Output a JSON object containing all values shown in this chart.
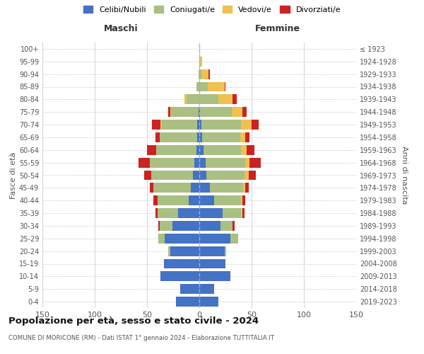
{
  "age_groups": [
    "0-4",
    "5-9",
    "10-14",
    "15-19",
    "20-24",
    "25-29",
    "30-34",
    "35-39",
    "40-44",
    "45-49",
    "50-54",
    "55-59",
    "60-64",
    "65-69",
    "70-74",
    "75-79",
    "80-84",
    "85-89",
    "90-94",
    "95-99",
    "100+"
  ],
  "birth_years": [
    "2019-2023",
    "2014-2018",
    "2009-2013",
    "2004-2008",
    "1999-2003",
    "1994-1998",
    "1989-1993",
    "1984-1988",
    "1979-1983",
    "1974-1978",
    "1969-1973",
    "1964-1968",
    "1959-1963",
    "1954-1958",
    "1949-1953",
    "1944-1948",
    "1939-1943",
    "1934-1938",
    "1929-1933",
    "1924-1928",
    "≤ 1923"
  ],
  "males": {
    "celibi": [
      22,
      18,
      37,
      34,
      28,
      33,
      26,
      20,
      10,
      8,
      6,
      5,
      3,
      2,
      2,
      1,
      0,
      0,
      0,
      0,
      0
    ],
    "coniugati": [
      0,
      0,
      0,
      0,
      2,
      6,
      12,
      20,
      30,
      36,
      40,
      42,
      38,
      36,
      34,
      26,
      12,
      3,
      1,
      0,
      0
    ],
    "vedovi": [
      0,
      0,
      0,
      0,
      0,
      0,
      0,
      0,
      0,
      0,
      0,
      0,
      0,
      0,
      1,
      1,
      2,
      0,
      0,
      0,
      0
    ],
    "divorziati": [
      0,
      0,
      0,
      0,
      0,
      0,
      1,
      2,
      4,
      3,
      7,
      11,
      9,
      4,
      8,
      2,
      0,
      0,
      0,
      0,
      0
    ]
  },
  "females": {
    "nubili": [
      18,
      14,
      30,
      25,
      24,
      30,
      20,
      22,
      14,
      10,
      7,
      6,
      4,
      3,
      2,
      1,
      0,
      0,
      0,
      0,
      0
    ],
    "coniugate": [
      0,
      0,
      0,
      0,
      2,
      7,
      12,
      18,
      26,
      32,
      36,
      38,
      36,
      36,
      38,
      30,
      18,
      8,
      2,
      1,
      0
    ],
    "vedove": [
      0,
      0,
      0,
      0,
      0,
      0,
      0,
      1,
      1,
      2,
      4,
      4,
      5,
      5,
      10,
      10,
      14,
      16,
      7,
      2,
      1
    ],
    "divorziate": [
      0,
      0,
      0,
      0,
      0,
      0,
      2,
      2,
      3,
      3,
      7,
      11,
      8,
      4,
      7,
      4,
      4,
      1,
      1,
      0,
      0
    ]
  },
  "colors": {
    "celibi": "#4472C4",
    "coniugati": "#AABF82",
    "vedovi": "#F0C050",
    "divorziati": "#CC2222"
  },
  "title": "Popolazione per età, sesso e stato civile - 2024",
  "subtitle": "COMUNE DI MORICONE (RM) - Dati ISTAT 1° gennaio 2024 - Elaborazione TUTTITALIA.IT",
  "xlabel_left": "Maschi",
  "xlabel_right": "Femmine",
  "ylabel_left": "Fasce di età",
  "ylabel_right": "Anni di nascita",
  "xlim": 150,
  "bg_color": "#ffffff",
  "grid_color": "#cccccc",
  "legend_labels": [
    "Celibi/Nubili",
    "Coniugati/e",
    "Vedovi/e",
    "Divorziati/e"
  ]
}
